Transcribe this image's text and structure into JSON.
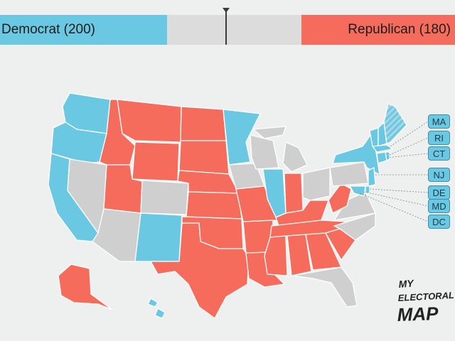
{
  "tally": {
    "democrat_label": "Democrat (200)",
    "republican_label": "Republican (180)",
    "colors": {
      "democrat": "#6ac8e3",
      "republican": "#f66c5c",
      "tossup": "#cfcfcf"
    }
  },
  "small_states": [
    "MA",
    "RI",
    "CT",
    "NJ",
    "DE",
    "MD",
    "DC"
  ],
  "logo": {
    "line1": "MY",
    "line2": "ELECTORAL",
    "line3": "MAP"
  },
  "icons": {
    "threshold_marker": "triangle-down-icon"
  }
}
